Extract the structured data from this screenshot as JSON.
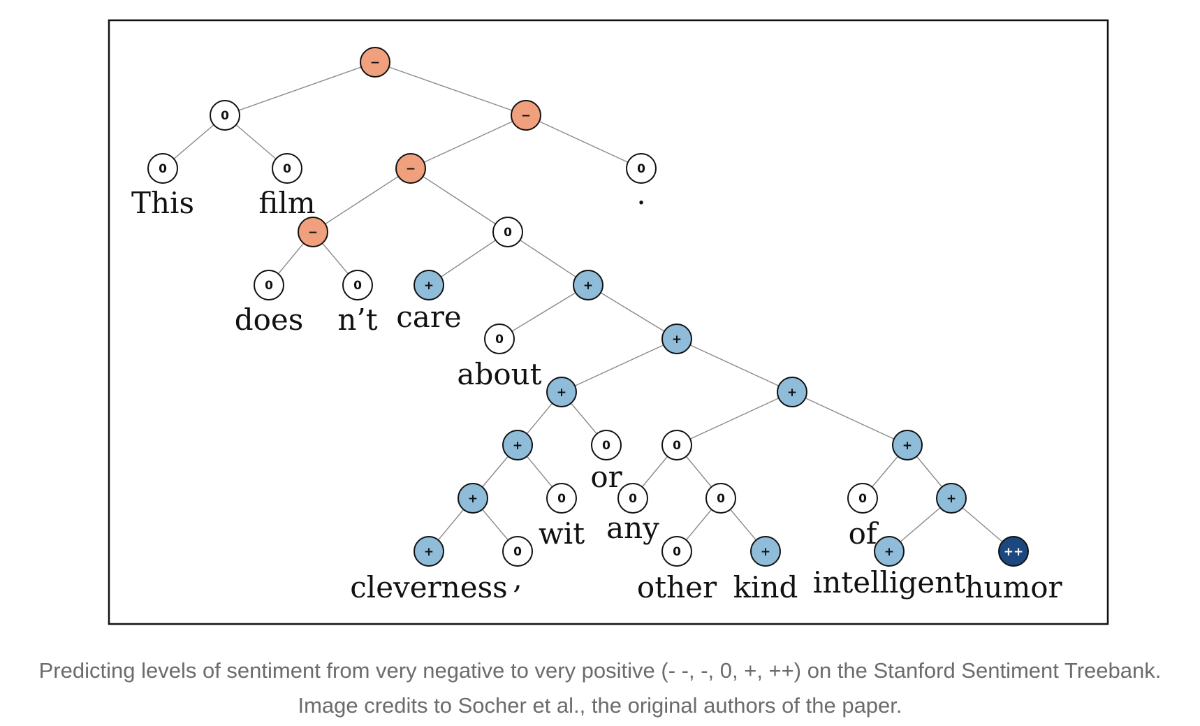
{
  "colors": {
    "negative": "#f0a07c",
    "neutral": "#ffffff",
    "positive": "#8fbcd9",
    "very_positive": "#1c477f",
    "edge": "#8a8a8a",
    "frame": "#111111",
    "caption": "#6b6b6b"
  },
  "sentiment_labels": {
    "negative": "−",
    "neutral": "0",
    "positive": "+",
    "very_positive": "++"
  },
  "tree": {
    "words": [
      "This",
      "film",
      "does",
      "n’t",
      "care",
      "about",
      "cleverness",
      ",",
      "wit",
      "or",
      "any",
      "other",
      "kind",
      "of",
      "intelligent",
      "humor",
      "."
    ],
    "nodes": [
      {
        "id": "root",
        "sentiment": "negative",
        "children": [
          "n1",
          "n2"
        ]
      },
      {
        "id": "n1",
        "sentiment": "neutral",
        "children": [
          "w_this",
          "w_film"
        ]
      },
      {
        "id": "w_this",
        "sentiment": "neutral",
        "word": "This"
      },
      {
        "id": "w_film",
        "sentiment": "neutral",
        "word": "film"
      },
      {
        "id": "n2",
        "sentiment": "negative",
        "children": [
          "n3",
          "w_period"
        ]
      },
      {
        "id": "w_period",
        "sentiment": "neutral",
        "word": "."
      },
      {
        "id": "n3",
        "sentiment": "negative",
        "children": [
          "n4",
          "n5"
        ]
      },
      {
        "id": "n4",
        "sentiment": "negative",
        "children": [
          "w_does",
          "w_nt"
        ]
      },
      {
        "id": "w_does",
        "sentiment": "neutral",
        "word": "does"
      },
      {
        "id": "w_nt",
        "sentiment": "neutral",
        "word": "n’t"
      },
      {
        "id": "n5",
        "sentiment": "neutral",
        "children": [
          "w_care",
          "n6"
        ]
      },
      {
        "id": "w_care",
        "sentiment": "positive",
        "word": "care"
      },
      {
        "id": "n6",
        "sentiment": "positive",
        "children": [
          "w_about",
          "n7"
        ]
      },
      {
        "id": "w_about",
        "sentiment": "neutral",
        "word": "about"
      },
      {
        "id": "n7",
        "sentiment": "positive",
        "children": [
          "n8",
          "n9"
        ]
      },
      {
        "id": "n8",
        "sentiment": "positive",
        "children": [
          "n10",
          "w_or"
        ]
      },
      {
        "id": "w_or",
        "sentiment": "neutral",
        "word": "or"
      },
      {
        "id": "n10",
        "sentiment": "positive",
        "children": [
          "n11",
          "w_wit"
        ]
      },
      {
        "id": "w_wit",
        "sentiment": "neutral",
        "word": "wit"
      },
      {
        "id": "n11",
        "sentiment": "positive",
        "children": [
          "w_cleverness",
          "w_comma"
        ]
      },
      {
        "id": "w_cleverness",
        "sentiment": "positive",
        "word": "cleverness"
      },
      {
        "id": "w_comma",
        "sentiment": "neutral",
        "word": ","
      },
      {
        "id": "n9",
        "sentiment": "positive",
        "children": [
          "n12",
          "n13"
        ]
      },
      {
        "id": "n12",
        "sentiment": "neutral",
        "children": [
          "w_any",
          "n14"
        ]
      },
      {
        "id": "w_any",
        "sentiment": "neutral",
        "word": "any"
      },
      {
        "id": "n14",
        "sentiment": "neutral",
        "children": [
          "w_other",
          "w_kind"
        ]
      },
      {
        "id": "w_other",
        "sentiment": "neutral",
        "word": "other"
      },
      {
        "id": "w_kind",
        "sentiment": "positive",
        "word": "kind"
      },
      {
        "id": "n13",
        "sentiment": "positive",
        "children": [
          "w_of",
          "n15"
        ]
      },
      {
        "id": "w_of",
        "sentiment": "neutral",
        "word": "of"
      },
      {
        "id": "n15",
        "sentiment": "positive",
        "children": [
          "w_intelligent",
          "w_humor"
        ]
      },
      {
        "id": "w_intelligent",
        "sentiment": "positive",
        "word": "intelligent"
      },
      {
        "id": "w_humor",
        "sentiment": "very_positive",
        "word": "humor"
      }
    ]
  },
  "caption": "Predicting levels of sentiment from very negative to very positive (- -, -, 0, +, ++) on the Stanford Sentiment Treebank. Image credits to Socher et al., the original authors of the paper."
}
